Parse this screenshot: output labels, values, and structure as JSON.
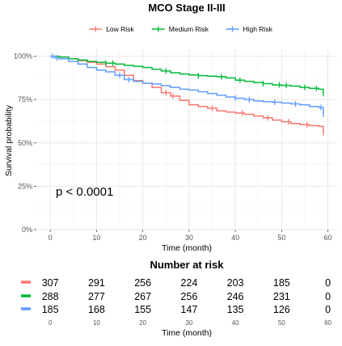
{
  "chart_data": {
    "type": "line",
    "title": "MCO Stage II-III",
    "xlabel": "Time (month)",
    "ylabel": "Survival probability",
    "xlim": [
      -3,
      62
    ],
    "ylim": [
      0,
      1.04
    ],
    "x_ticks": [
      0,
      10,
      20,
      30,
      40,
      50,
      60
    ],
    "y_ticks": [
      0,
      0.25,
      0.5,
      0.75,
      1.0
    ],
    "y_tick_labels": [
      "0%",
      "25%",
      "50%",
      "75%",
      "100%"
    ],
    "grid": true,
    "legend_position": "top",
    "annotation": "p < 0.0001",
    "series": [
      {
        "name": "Low Risk",
        "color": "#F8766D",
        "points": [
          [
            0,
            1.0
          ],
          [
            2,
            0.995
          ],
          [
            4,
            0.985
          ],
          [
            6,
            0.975
          ],
          [
            8,
            0.965
          ],
          [
            10,
            0.955
          ],
          [
            12,
            0.94
          ],
          [
            14,
            0.92
          ],
          [
            16,
            0.89
          ],
          [
            18,
            0.86
          ],
          [
            20,
            0.845
          ],
          [
            22,
            0.82
          ],
          [
            24,
            0.79
          ],
          [
            26,
            0.77
          ],
          [
            28,
            0.745
          ],
          [
            30,
            0.72
          ],
          [
            32,
            0.71
          ],
          [
            34,
            0.7
          ],
          [
            36,
            0.685
          ],
          [
            38,
            0.678
          ],
          [
            40,
            0.672
          ],
          [
            42,
            0.665
          ],
          [
            44,
            0.655
          ],
          [
            46,
            0.645
          ],
          [
            48,
            0.632
          ],
          [
            50,
            0.622
          ],
          [
            52,
            0.612
          ],
          [
            54,
            0.605
          ],
          [
            56,
            0.6
          ],
          [
            58,
            0.595
          ],
          [
            59,
            0.56
          ]
        ],
        "censor_x": [
          25,
          26.5,
          35,
          41.5,
          47,
          51.5,
          55.5,
          59
        ]
      },
      {
        "name": "Medium Risk",
        "color": "#00BA38",
        "points": [
          [
            0,
            1.0
          ],
          [
            2,
            0.995
          ],
          [
            4,
            0.985
          ],
          [
            6,
            0.978
          ],
          [
            8,
            0.97
          ],
          [
            10,
            0.965
          ],
          [
            12,
            0.96
          ],
          [
            14,
            0.955
          ],
          [
            16,
            0.948
          ],
          [
            18,
            0.942
          ],
          [
            20,
            0.935
          ],
          [
            22,
            0.925
          ],
          [
            24,
            0.915
          ],
          [
            26,
            0.905
          ],
          [
            28,
            0.898
          ],
          [
            30,
            0.892
          ],
          [
            32,
            0.888
          ],
          [
            34,
            0.885
          ],
          [
            36,
            0.882
          ],
          [
            38,
            0.875
          ],
          [
            40,
            0.862
          ],
          [
            42,
            0.855
          ],
          [
            44,
            0.848
          ],
          [
            46,
            0.842
          ],
          [
            48,
            0.835
          ],
          [
            50,
            0.832
          ],
          [
            52,
            0.828
          ],
          [
            54,
            0.82
          ],
          [
            56,
            0.815
          ],
          [
            58,
            0.81
          ],
          [
            59,
            0.785
          ]
        ],
        "censor_x": [
          12,
          13.5,
          25,
          32,
          37,
          41,
          46,
          49.5,
          51,
          55,
          57.5,
          59
        ]
      },
      {
        "name": "High Risk",
        "color": "#619CFF",
        "points": [
          [
            0,
            1.0
          ],
          [
            1,
            0.99
          ],
          [
            2,
            0.985
          ],
          [
            4,
            0.97
          ],
          [
            6,
            0.955
          ],
          [
            8,
            0.935
          ],
          [
            10,
            0.92
          ],
          [
            12,
            0.91
          ],
          [
            14,
            0.89
          ],
          [
            16,
            0.865
          ],
          [
            18,
            0.855
          ],
          [
            20,
            0.845
          ],
          [
            22,
            0.84
          ],
          [
            24,
            0.83
          ],
          [
            26,
            0.82
          ],
          [
            28,
            0.81
          ],
          [
            30,
            0.805
          ],
          [
            32,
            0.795
          ],
          [
            34,
            0.785
          ],
          [
            36,
            0.775
          ],
          [
            38,
            0.765
          ],
          [
            40,
            0.758
          ],
          [
            42,
            0.75
          ],
          [
            44,
            0.742
          ],
          [
            46,
            0.738
          ],
          [
            48,
            0.735
          ],
          [
            50,
            0.73
          ],
          [
            52,
            0.725
          ],
          [
            54,
            0.72
          ],
          [
            56,
            0.71
          ],
          [
            58,
            0.705
          ],
          [
            59,
            0.665
          ]
        ],
        "censor_x": [
          0.5,
          1.5,
          15,
          17,
          40,
          43,
          48.5,
          53,
          58.5,
          59
        ]
      }
    ],
    "risk_table": {
      "title": "Number at risk",
      "xlabel": "Time (month)",
      "x": [
        0,
        10,
        20,
        30,
        40,
        50,
        60
      ],
      "rows": [
        {
          "name": "Low Risk",
          "color": "#F8766D",
          "values": [
            "307",
            "291",
            "256",
            "224",
            "203",
            "185",
            "0"
          ]
        },
        {
          "name": "Medium Risk",
          "color": "#00BA38",
          "values": [
            "288",
            "277",
            "267",
            "256",
            "246",
            "231",
            "0"
          ]
        },
        {
          "name": "High Risk",
          "color": "#619CFF",
          "values": [
            "185",
            "168",
            "155",
            "147",
            "135",
            "126",
            "0"
          ]
        }
      ]
    }
  }
}
